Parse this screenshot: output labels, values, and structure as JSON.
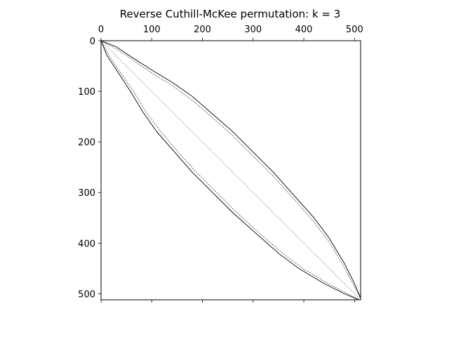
{
  "chart_data": {
    "type": "spy",
    "title": "Reverse Cuthill-McKee permutation: k = 3",
    "matrix_size": 512,
    "xlim": [
      0,
      512
    ],
    "ylim": [
      512,
      0
    ],
    "x_axis_position": "top",
    "xticks": [
      0,
      100,
      200,
      300,
      400,
      500
    ],
    "xtick_labels": [
      "0",
      "100",
      "200",
      "300",
      "400",
      "500"
    ],
    "yticks": [
      0,
      100,
      200,
      300,
      400,
      500
    ],
    "ytick_labels": [
      "0",
      "100",
      "200",
      "300",
      "400",
      "500"
    ],
    "grid": false,
    "marker_color": "#000000",
    "bands": [
      {
        "name": "upper band",
        "points": [
          [
            0,
            0
          ],
          [
            30,
            12
          ],
          [
            60,
            32
          ],
          [
            100,
            58
          ],
          [
            140,
            82
          ],
          [
            180,
            110
          ],
          [
            220,
            145
          ],
          [
            260,
            180
          ],
          [
            300,
            220
          ],
          [
            340,
            260
          ],
          [
            380,
            305
          ],
          [
            420,
            350
          ],
          [
            450,
            390
          ],
          [
            480,
            440
          ],
          [
            500,
            480
          ],
          [
            512,
            508
          ]
        ]
      },
      {
        "name": "upper band inner",
        "points": [
          [
            0,
            0
          ],
          [
            30,
            16
          ],
          [
            60,
            36
          ],
          [
            100,
            64
          ],
          [
            140,
            88
          ],
          [
            180,
            118
          ],
          [
            220,
            152
          ],
          [
            260,
            188
          ],
          [
            300,
            228
          ],
          [
            340,
            268
          ],
          [
            380,
            312
          ],
          [
            420,
            358
          ],
          [
            450,
            398
          ],
          [
            480,
            448
          ],
          [
            500,
            486
          ],
          [
            512,
            510
          ]
        ]
      },
      {
        "name": "lower band",
        "points": [
          [
            0,
            0
          ],
          [
            12,
            30
          ],
          [
            32,
            60
          ],
          [
            58,
            100
          ],
          [
            82,
            140
          ],
          [
            110,
            180
          ],
          [
            145,
            220
          ],
          [
            180,
            260
          ],
          [
            220,
            300
          ],
          [
            260,
            340
          ],
          [
            305,
            380
          ],
          [
            350,
            420
          ],
          [
            390,
            450
          ],
          [
            440,
            480
          ],
          [
            480,
            500
          ],
          [
            508,
            512
          ]
        ]
      },
      {
        "name": "lower band inner",
        "points": [
          [
            0,
            0
          ],
          [
            16,
            30
          ],
          [
            36,
            60
          ],
          [
            64,
            100
          ],
          [
            88,
            140
          ],
          [
            118,
            180
          ],
          [
            152,
            220
          ],
          [
            188,
            260
          ],
          [
            228,
            300
          ],
          [
            268,
            340
          ],
          [
            312,
            380
          ],
          [
            358,
            420
          ],
          [
            398,
            450
          ],
          [
            448,
            480
          ],
          [
            486,
            500
          ],
          [
            510,
            512
          ]
        ]
      }
    ]
  }
}
